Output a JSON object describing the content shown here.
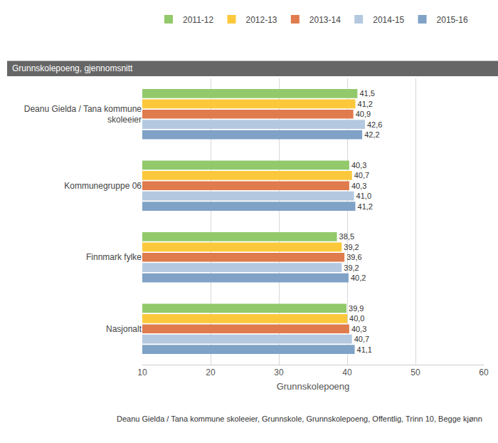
{
  "chart_data": {
    "type": "bar",
    "orientation": "horizontal",
    "title": "Grunnskolepoeng, gjennomsnitt",
    "x_label": "Grunnskolepoeng",
    "footnote": "Deanu Gielda / Tana kommune skoleeier, Grunnskole, Grunnskolepoeng, Offentlig, Trinn 10, Begge kjønn",
    "categories": [
      "Deanu Gielda / Tana kommune skoleeier",
      "Kommunegruppe 06",
      "Finnmark fylke",
      "Nasjonalt"
    ],
    "series": [
      {
        "name": "2011-12",
        "color": "#92c96b",
        "values": [
          41.5,
          40.3,
          38.5,
          39.9
        ],
        "value_labels": [
          "41,5",
          "40,3",
          "38,5",
          "39,9"
        ]
      },
      {
        "name": "2012-13",
        "color": "#fcc83b",
        "values": [
          41.2,
          40.7,
          39.2,
          40.0
        ],
        "value_labels": [
          "41,2",
          "40,7",
          "39,2",
          "40,0"
        ]
      },
      {
        "name": "2013-14",
        "color": "#e07b4d",
        "values": [
          40.9,
          40.3,
          39.6,
          40.3
        ],
        "value_labels": [
          "40,9",
          "40,3",
          "39,6",
          "40,3"
        ]
      },
      {
        "name": "2014-15",
        "color": "#b4c9e0",
        "values": [
          42.6,
          41.0,
          39.2,
          40.7
        ],
        "value_labels": [
          "42,6",
          "41,0",
          "39,2",
          "40,7"
        ]
      },
      {
        "name": "2015-16",
        "color": "#7fa2c6",
        "values": [
          42.2,
          41.2,
          40.2,
          41.1
        ],
        "value_labels": [
          "42,2",
          "41,2",
          "40,2",
          "41,1"
        ]
      }
    ],
    "xlim": [
      10,
      60
    ],
    "xticks": [
      10,
      20,
      30,
      40,
      50,
      60
    ],
    "grid": true,
    "legend": "top",
    "data_labels": true
  }
}
